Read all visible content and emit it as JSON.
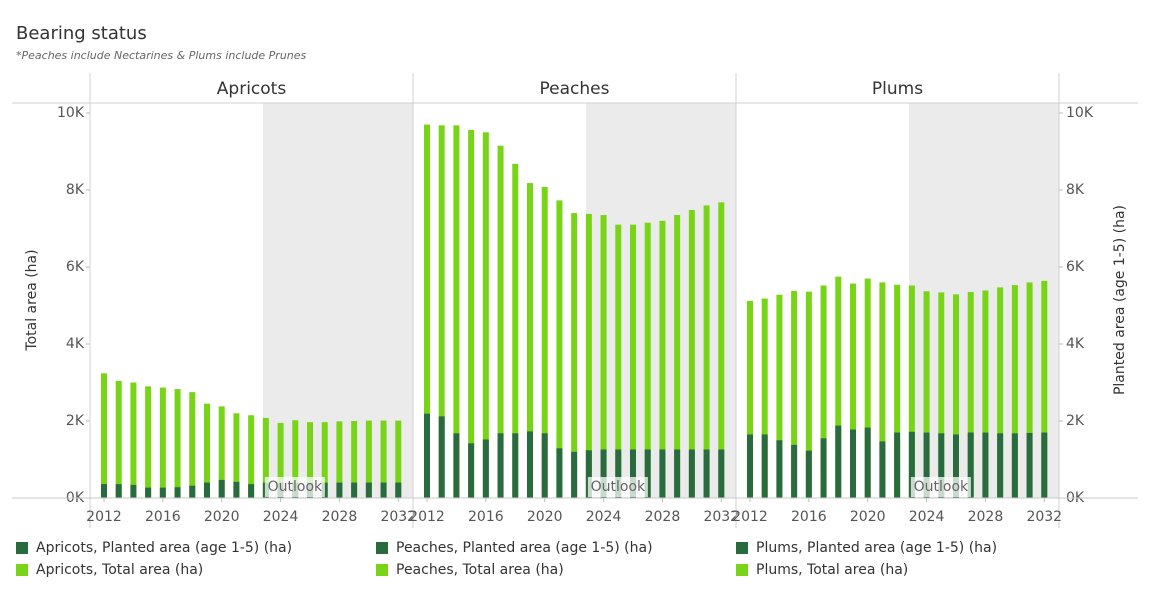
{
  "title": "Bearing status",
  "subtitle": "*Peaches include Nectarines & Plums include Prunes",
  "chart_data": [
    {
      "type": "bar",
      "title": "Apricots",
      "y_label": "Total area (ha)",
      "x": [
        2012,
        2013,
        2014,
        2015,
        2016,
        2017,
        2018,
        2019,
        2020,
        2021,
        2022,
        2023,
        2024,
        2025,
        2026,
        2027,
        2028,
        2029,
        2030,
        2031,
        2032
      ],
      "xlim": [
        2011.05,
        2033
      ],
      "xticks": [
        2012,
        2016,
        2020,
        2024,
        2028,
        2032
      ],
      "ylim": [
        0,
        10260
      ],
      "y2lim": [
        0,
        10260
      ],
      "yticks": [
        {
          "value": 0,
          "label": "0K"
        },
        {
          "value": 2000,
          "label": "2K"
        },
        {
          "value": 4000,
          "label": "4K"
        },
        {
          "value": 6000,
          "label": "6K"
        },
        {
          "value": 8000,
          "label": "8K"
        },
        {
          "value": 10000,
          "label": "10K"
        }
      ],
      "shaded_region": {
        "from": 2022.8,
        "label": "Outlook"
      },
      "series": [
        {
          "name": "Apricots, Planted area (age 1-5) (ha)",
          "color": "#2a6a3f",
          "axis": "y2",
          "values": [
            360,
            360,
            340,
            270,
            270,
            280,
            320,
            400,
            470,
            420,
            360,
            400,
            400,
            400,
            400,
            400,
            400,
            400,
            400,
            400,
            400
          ]
        },
        {
          "name": "Apricots, Total area (ha)",
          "color": "#78d416",
          "values": [
            3240,
            3040,
            3000,
            2900,
            2870,
            2830,
            2750,
            2450,
            2380,
            2200,
            2150,
            2080,
            1950,
            2020,
            1970,
            1970,
            1990,
            2000,
            2010,
            2010,
            2010
          ]
        }
      ]
    },
    {
      "type": "bar",
      "title": "Peaches",
      "x": [
        2012,
        2013,
        2014,
        2015,
        2016,
        2017,
        2018,
        2019,
        2020,
        2021,
        2022,
        2023,
        2024,
        2025,
        2026,
        2027,
        2028,
        2029,
        2030,
        2031,
        2032
      ],
      "xlim": [
        2011.05,
        2033
      ],
      "xticks": [
        2012,
        2016,
        2020,
        2024,
        2028,
        2032
      ],
      "ylim": [
        0,
        10260
      ],
      "y2lim": [
        0,
        10260
      ],
      "shaded_region": {
        "from": 2022.8,
        "label": "Outlook"
      },
      "series": [
        {
          "name": "Peaches, Planted area (age 1-5) (ha)",
          "color": "#2a6a3f",
          "axis": "y2",
          "values": [
            2190,
            2120,
            1680,
            1420,
            1520,
            1680,
            1680,
            1730,
            1680,
            1290,
            1200,
            1240,
            1260,
            1260,
            1260,
            1260,
            1260,
            1260,
            1260,
            1260,
            1260
          ]
        },
        {
          "name": "Peaches, Total area (ha)",
          "color": "#78d416",
          "values": [
            9700,
            9680,
            9680,
            9560,
            9500,
            9150,
            8680,
            8180,
            8080,
            7730,
            7400,
            7380,
            7350,
            7100,
            7100,
            7150,
            7200,
            7350,
            7480,
            7600,
            7680
          ]
        }
      ]
    },
    {
      "type": "bar",
      "title": "Plums",
      "y2_label": "Planted area (age 1-5) (ha)",
      "x": [
        2012,
        2013,
        2014,
        2015,
        2016,
        2017,
        2018,
        2019,
        2020,
        2021,
        2022,
        2023,
        2024,
        2025,
        2026,
        2027,
        2028,
        2029,
        2030,
        2031,
        2032
      ],
      "xlim": [
        2011.05,
        2033
      ],
      "xticks": [
        2012,
        2016,
        2020,
        2024,
        2028,
        2032
      ],
      "ylim": [
        0,
        10260
      ],
      "y2lim": [
        0,
        10260
      ],
      "y2ticks": [
        {
          "value": 0,
          "label": "0K"
        },
        {
          "value": 2000,
          "label": "2K"
        },
        {
          "value": 4000,
          "label": "4K"
        },
        {
          "value": 6000,
          "label": "6K"
        },
        {
          "value": 8000,
          "label": "8K"
        },
        {
          "value": 10000,
          "label": "10K"
        }
      ],
      "shaded_region": {
        "from": 2022.8,
        "label": "Outlook"
      },
      "series": [
        {
          "name": "Plums, Planted area (age 1-5) (ha)",
          "color": "#2a6a3f",
          "axis": "y2",
          "values": [
            1650,
            1650,
            1500,
            1380,
            1230,
            1550,
            1880,
            1780,
            1830,
            1470,
            1700,
            1720,
            1700,
            1680,
            1650,
            1700,
            1700,
            1680,
            1680,
            1690,
            1700
          ]
        },
        {
          "name": "Plums, Total area (ha)",
          "color": "#78d416",
          "values": [
            5120,
            5180,
            5280,
            5380,
            5360,
            5520,
            5750,
            5570,
            5700,
            5600,
            5540,
            5520,
            5370,
            5340,
            5290,
            5350,
            5390,
            5470,
            5530,
            5600,
            5640
          ]
        }
      ]
    }
  ]
}
